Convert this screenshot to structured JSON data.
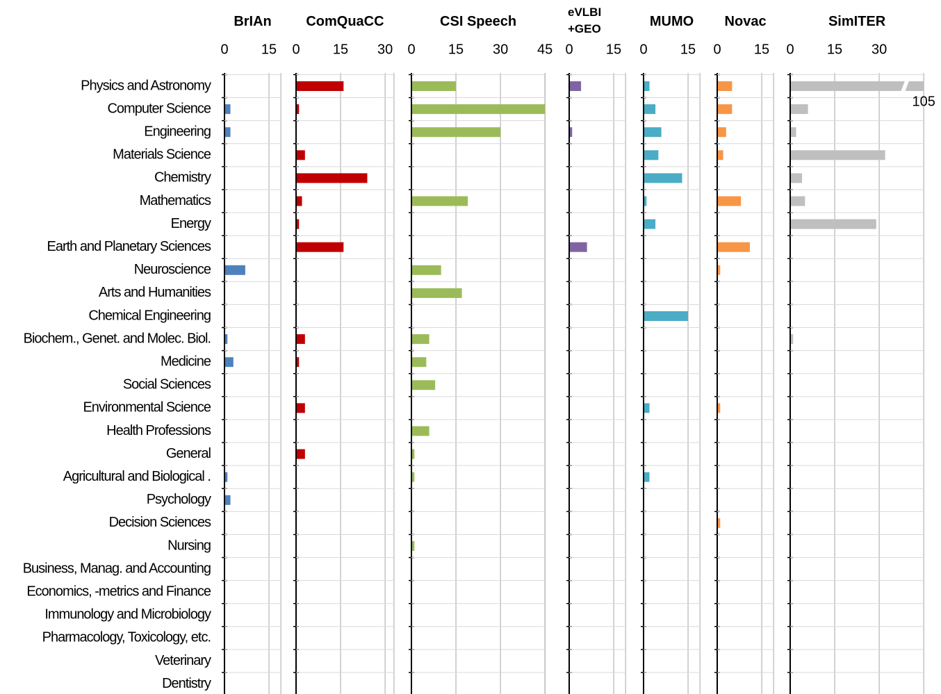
{
  "chart_data": [
    {
      "type": "bar",
      "title": "BrIAn",
      "color": "#4f81bd",
      "xlim": [
        0,
        19
      ],
      "xticks": [
        0,
        15
      ],
      "categories": [
        "Physics and Astronomy",
        "Computer Science",
        "Engineering",
        "Materials Science",
        "Chemistry",
        "Mathematics",
        "Energy",
        "Earth and Planetary Sciences",
        "Neuroscience",
        "Arts and Humanities",
        "Chemical Engineering",
        "Biochem., Genet. and Molec. Biol.",
        "Medicine",
        "Social Sciences",
        "Environmental Science",
        "Health Professions",
        "General",
        "Agricultural and Biological .",
        "Psychology",
        "Decision Sciences",
        "Nursing",
        "Business, Manag. and Accounting",
        "Economics, -metrics and Finance",
        "Immunology and Microbiology",
        "Pharmacology, Toxicology, etc.",
        "Veterinary",
        "Dentistry"
      ],
      "values": [
        0,
        2,
        2,
        0,
        0,
        0,
        0,
        0,
        7,
        0,
        0,
        1,
        3,
        0,
        0,
        0,
        0,
        1,
        2,
        0,
        0,
        0,
        0,
        0,
        0,
        0,
        0
      ]
    },
    {
      "type": "bar",
      "title": "ComQuaCC",
      "color": "#c00000",
      "xlim": [
        0,
        33
      ],
      "xticks": [
        0,
        15,
        30
      ],
      "values": [
        16,
        1,
        0,
        3,
        24,
        2,
        1,
        16,
        0,
        0,
        0,
        3,
        1,
        0,
        3,
        0,
        3,
        0,
        0,
        0,
        0,
        0,
        0,
        0,
        0,
        0,
        0
      ]
    },
    {
      "type": "bar",
      "title": "CSI Speech",
      "color": "#9bbb59",
      "xlim": [
        0,
        45
      ],
      "xticks": [
        0,
        15,
        30,
        45
      ],
      "values": [
        15,
        45,
        30,
        0,
        0,
        19,
        0,
        0,
        10,
        17,
        0,
        6,
        5,
        8,
        0,
        6,
        1,
        1,
        0,
        0,
        1,
        0,
        0,
        0,
        0,
        0,
        0
      ]
    },
    {
      "type": "bar",
      "title": "eVLBI +GEO",
      "color": "#8064a2",
      "xlim": [
        0,
        19
      ],
      "xticks": [
        0,
        15
      ],
      "values": [
        4,
        0,
        1,
        0,
        0,
        0,
        0,
        6,
        0,
        0,
        0,
        0,
        0,
        0,
        0,
        0,
        0,
        0,
        0,
        0,
        0,
        0,
        0,
        0,
        0,
        0,
        0
      ]
    },
    {
      "type": "bar",
      "title": "MUMO",
      "color": "#4bacc6",
      "xlim": [
        0,
        19
      ],
      "xticks": [
        0,
        15
      ],
      "values": [
        2,
        4,
        6,
        5,
        13,
        1,
        4,
        0,
        0,
        0,
        15,
        0,
        0,
        0,
        2,
        0,
        0,
        2,
        0,
        0,
        0,
        0,
        0,
        0,
        0,
        0,
        0
      ]
    },
    {
      "type": "bar",
      "title": "Novac",
      "color": "#f79646",
      "xlim": [
        0,
        19
      ],
      "xticks": [
        0,
        15
      ],
      "values": [
        5,
        5,
        3,
        2,
        0,
        8,
        0,
        11,
        1,
        0,
        0,
        0,
        0,
        0,
        1,
        0,
        0,
        0,
        0,
        1,
        0,
        0,
        0,
        0,
        0,
        0,
        0
      ]
    },
    {
      "type": "bar",
      "title": "SimITER",
      "color": "#bfbfbf",
      "xlim": [
        0,
        45
      ],
      "xticks": [
        0,
        15,
        30
      ],
      "values": [
        105,
        6,
        2,
        32,
        4,
        5,
        29,
        0,
        0,
        0,
        0,
        1,
        0,
        0,
        0,
        0,
        0,
        0,
        0,
        0,
        0,
        0,
        0,
        0,
        0,
        0,
        0
      ]
    }
  ]
}
